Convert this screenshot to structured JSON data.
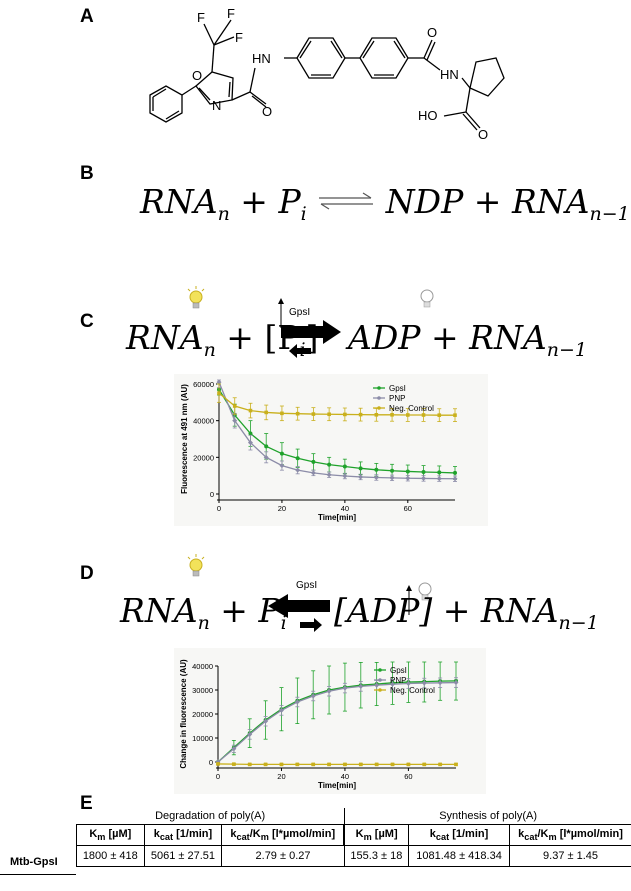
{
  "panels": {
    "a": {
      "label": "A",
      "atoms": {
        "f1": "F",
        "f2": "F",
        "f3": "F",
        "o_ring": "O",
        "n_ring": "N",
        "hn_left": "HN",
        "o_amide_left": "O",
        "o_amide_right": "O",
        "hn_right": "HN",
        "ho": "HO",
        "o_acid": "O"
      }
    },
    "b": {
      "label": "B",
      "lhs_term1": "RNA",
      "lhs_sub1": "n",
      "lhs_term2": "P",
      "lhs_sub2": "i",
      "rhs_term1": "NDP",
      "rhs_term2": "RNA",
      "rhs_sub2": "n−1"
    },
    "c": {
      "label": "C",
      "lhs_term1": "RNA",
      "lhs_sub1": "n",
      "lhs_term2": "[P",
      "lhs_sub2": "i",
      "lhs_close": "]",
      "rhs_term1": "ADP",
      "rhs_term2": "RNA",
      "rhs_sub2": "n−1",
      "enzyme": "GpsI"
    },
    "d": {
      "label": "D",
      "lhs_term1": "RNA",
      "lhs_sub1": "n",
      "lhs_term2": "P",
      "lhs_sub2": "i",
      "rhs_term1": "[ADP]",
      "rhs_term2": "RNA",
      "rhs_sub2": "n−1",
      "enzyme": "GpsI"
    },
    "e": {
      "label": "E",
      "group1": "Degradation of poly(A)",
      "group2": "Synthesis of poly(A)",
      "columns": [
        "K<sub>m</sub> [µM]",
        "k<sub>cat</sub> [1/min]",
        "k<sub>cat</sub>/K<sub>m</sub> [l*µmol/min]",
        "K<sub>m</sub> [µM]",
        "k<sub>cat</sub> [1/min]",
        "k<sub>cat</sub>/K<sub>m</sub> [l*µmol/min]"
      ],
      "row_label": "Mtb-GpsI",
      "row_values": [
        "1800 ± 418",
        "5061 ± 27.51",
        "2.79 ± 0.27",
        "155.3 ± 18",
        "1081.48 ± 418.34",
        "9.37 ± 1.45"
      ]
    }
  },
  "chart_data": [
    {
      "type": "line",
      "ylabel": "Fluorescence at 491 nm (AU)",
      "xlabel": "Time[min]",
      "xlim": [
        0,
        75
      ],
      "ylim": [
        0,
        60000
      ],
      "xticks": [
        0,
        20,
        40,
        60
      ],
      "yticks": [
        0,
        20000,
        40000,
        60000
      ],
      "legend_position": "top-right",
      "series": [
        {
          "name": "GpsI",
          "color": "#1fa22b",
          "x": [
            0,
            5,
            10,
            15,
            20,
            25,
            30,
            35,
            40,
            45,
            50,
            55,
            60,
            65,
            70,
            75
          ],
          "y": [
            57000,
            43000,
            33000,
            26000,
            22000,
            19500,
            17500,
            16000,
            15000,
            14000,
            13200,
            12700,
            12300,
            12000,
            11800,
            11500
          ],
          "err": [
            3000,
            6000,
            7000,
            7000,
            6000,
            5000,
            4500,
            4000,
            4000,
            3500,
            3500,
            3500,
            3500,
            3500,
            3500,
            3500
          ]
        },
        {
          "name": "PNP",
          "color": "#8c8ca8",
          "x": [
            0,
            5,
            10,
            15,
            20,
            25,
            30,
            35,
            40,
            45,
            50,
            55,
            60,
            65,
            70,
            75
          ],
          "y": [
            61000,
            40000,
            28000,
            20000,
            15500,
            13000,
            11500,
            10500,
            9800,
            9300,
            9000,
            8800,
            8600,
            8500,
            8400,
            8300
          ],
          "err": [
            3000,
            4000,
            4000,
            3000,
            2500,
            2000,
            1500,
            1500,
            1500,
            1500,
            1500,
            1500,
            1500,
            1500,
            1500,
            1500
          ]
        },
        {
          "name": "Neg. Control",
          "color": "#c9b01c",
          "x": [
            0,
            5,
            10,
            15,
            20,
            25,
            30,
            35,
            40,
            45,
            50,
            55,
            60,
            65,
            70,
            75
          ],
          "y": [
            55000,
            48000,
            45500,
            44500,
            44000,
            43800,
            43600,
            43500,
            43400,
            43300,
            43200,
            43200,
            43100,
            43100,
            43000,
            43000
          ],
          "err": [
            5000,
            4500,
            4000,
            4000,
            4000,
            3500,
            3500,
            3500,
            3500,
            3500,
            3500,
            3500,
            3500,
            3500,
            3500,
            3500
          ]
        }
      ]
    },
    {
      "type": "line",
      "ylabel": "Change in fluorescence (AU)",
      "xlabel": "Time[min]",
      "xlim": [
        0,
        75
      ],
      "ylim": [
        0,
        40000
      ],
      "xticks": [
        0,
        20,
        40,
        60
      ],
      "yticks": [
        0,
        10000,
        20000,
        30000,
        40000
      ],
      "legend_position": "top-right",
      "series": [
        {
          "name": "GpsI",
          "color": "#1fa22b",
          "x": [
            0,
            5,
            10,
            15,
            20,
            25,
            30,
            35,
            40,
            45,
            50,
            55,
            60,
            65,
            70,
            75
          ],
          "y": [
            0,
            6000,
            12000,
            17500,
            22000,
            25500,
            28000,
            30000,
            31200,
            32000,
            32500,
            33000,
            33300,
            33500,
            33700,
            33800
          ],
          "err": [
            0,
            3000,
            6000,
            8000,
            9000,
            9500,
            10000,
            10000,
            10000,
            9500,
            9000,
            9000,
            8500,
            8500,
            8000,
            8000
          ]
        },
        {
          "name": "PNP",
          "color": "#8c8ca8",
          "x": [
            0,
            5,
            10,
            15,
            20,
            25,
            30,
            35,
            40,
            45,
            50,
            55,
            60,
            65,
            70,
            75
          ],
          "y": [
            0,
            5500,
            11500,
            17000,
            21500,
            25000,
            27500,
            29500,
            30800,
            31500,
            32000,
            32400,
            32700,
            32900,
            33000,
            33100
          ],
          "err": [
            0,
            1500,
            2000,
            2000,
            2000,
            2000,
            2000,
            2000,
            2000,
            2000,
            2000,
            2000,
            2000,
            2000,
            2000,
            2000
          ]
        },
        {
          "name": "Neg. Control",
          "color": "#c9b01c",
          "x": [
            0,
            5,
            10,
            15,
            20,
            25,
            30,
            35,
            40,
            45,
            50,
            55,
            60,
            65,
            70,
            75
          ],
          "y": [
            -800,
            -900,
            -1000,
            -1000,
            -1000,
            -1000,
            -1000,
            -1000,
            -1000,
            -1000,
            -1000,
            -1000,
            -1000,
            -1000,
            -1000,
            -1000
          ],
          "err": [
            300,
            300,
            300,
            300,
            300,
            300,
            300,
            300,
            300,
            300,
            300,
            300,
            300,
            300,
            300,
            300
          ]
        }
      ]
    }
  ]
}
